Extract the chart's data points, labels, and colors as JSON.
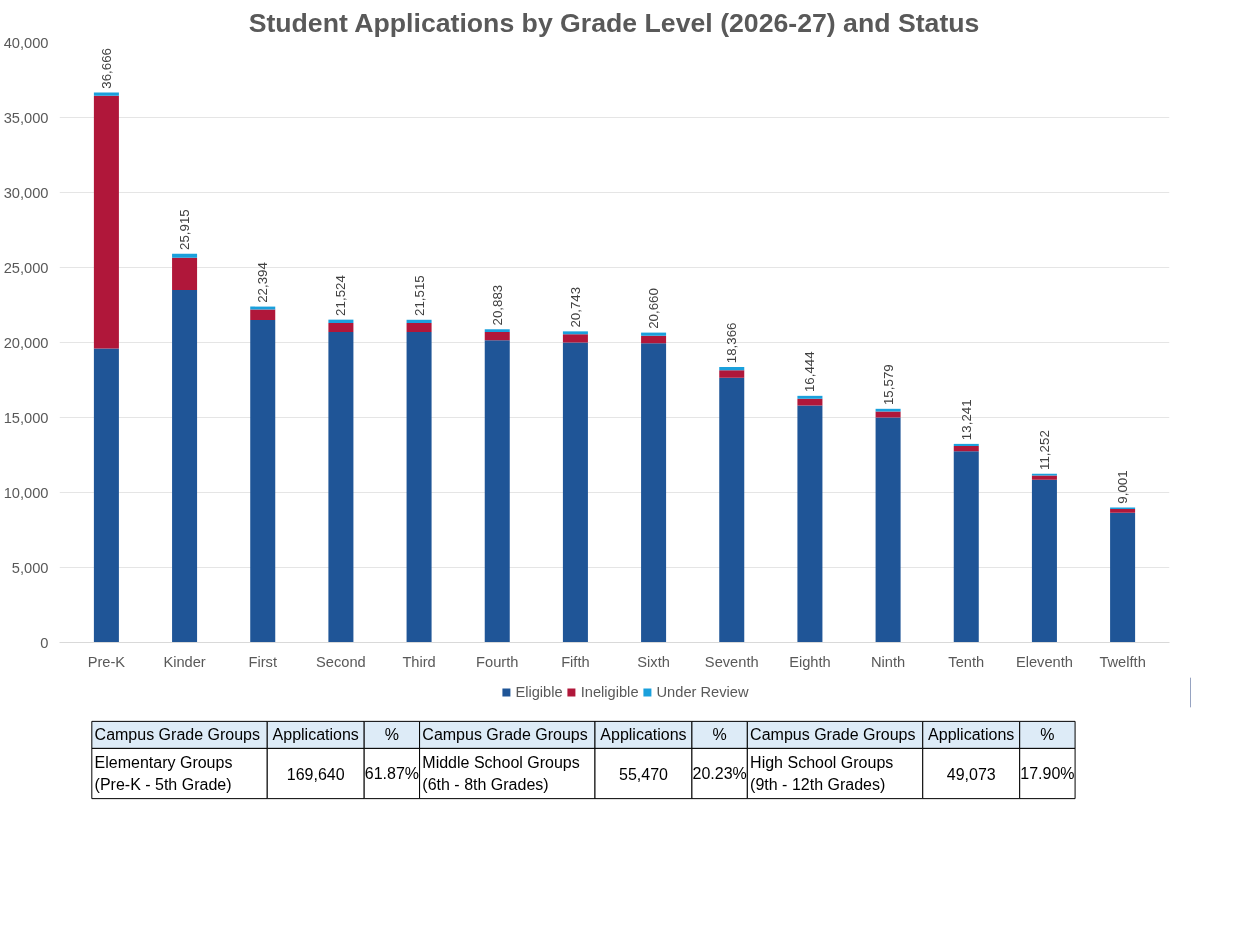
{
  "chart_data": {
    "type": "bar",
    "stacked": true,
    "title": "Student Applications by Grade Level (2026-27) and Status",
    "categories": [
      "Pre-K",
      "Kinder",
      "First",
      "Second",
      "Third",
      "Fourth",
      "Fifth",
      "Sixth",
      "Seventh",
      "Eighth",
      "Ninth",
      "Tenth",
      "Eleventh",
      "Twelfth"
    ],
    "series": [
      {
        "name": "Eligible",
        "color": "#1f5597",
        "values": [
          19600,
          23500,
          21500,
          20700,
          20700,
          20150,
          20000,
          19950,
          17650,
          15800,
          15000,
          12750,
          10850,
          8650
        ]
      },
      {
        "name": "Ineligible",
        "color": "#b0173a",
        "values": [
          16850,
          2150,
          700,
          600,
          600,
          550,
          550,
          500,
          500,
          450,
          400,
          350,
          280,
          250
        ]
      },
      {
        "name": "Under Review",
        "color": "#1aa0dc",
        "values": [
          216,
          265,
          194,
          224,
          215,
          183,
          193,
          210,
          216,
          194,
          179,
          141,
          122,
          101
        ]
      }
    ],
    "totals": [
      "36,666",
      "25,915",
      "22,394",
      "21,524",
      "21,515",
      "20,883",
      "20,743",
      "20,660",
      "18,366",
      "16,444",
      "15,579",
      "13,241",
      "11,252",
      "9,001"
    ],
    "ylim": [
      0,
      40000
    ],
    "yticks": [
      0,
      {
        "value": 5000,
        "label": "5,000"
      },
      {
        "value": 10000,
        "label": "10,000"
      },
      {
        "value": 15000,
        "label": "15,000"
      },
      {
        "value": 20000,
        "label": "20,000"
      },
      {
        "value": 25000,
        "label": "25,000"
      },
      {
        "value": 30000,
        "label": "30,000"
      },
      {
        "value": 35000,
        "label": "35,000"
      },
      {
        "value": 40000,
        "label": "40,000"
      }
    ],
    "grid": "y",
    "legend": "bottom",
    "annotations": [
      "Campus Grade Groups",
      "Applications",
      "%",
      "Campus Grade Groups",
      "Applications",
      "%",
      "Campus Grade Groups",
      "Applications",
      "%",
      "Elementary Groups\n(Pre-K - 5th Grade)",
      "169,640",
      "61.87%",
      "Middle School Groups\n(6th - 8th Grades)",
      "55,470",
      "20.23%",
      "High School Groups\n(9th - 12th Grades)",
      "49,073",
      "17.90%"
    ]
  }
}
